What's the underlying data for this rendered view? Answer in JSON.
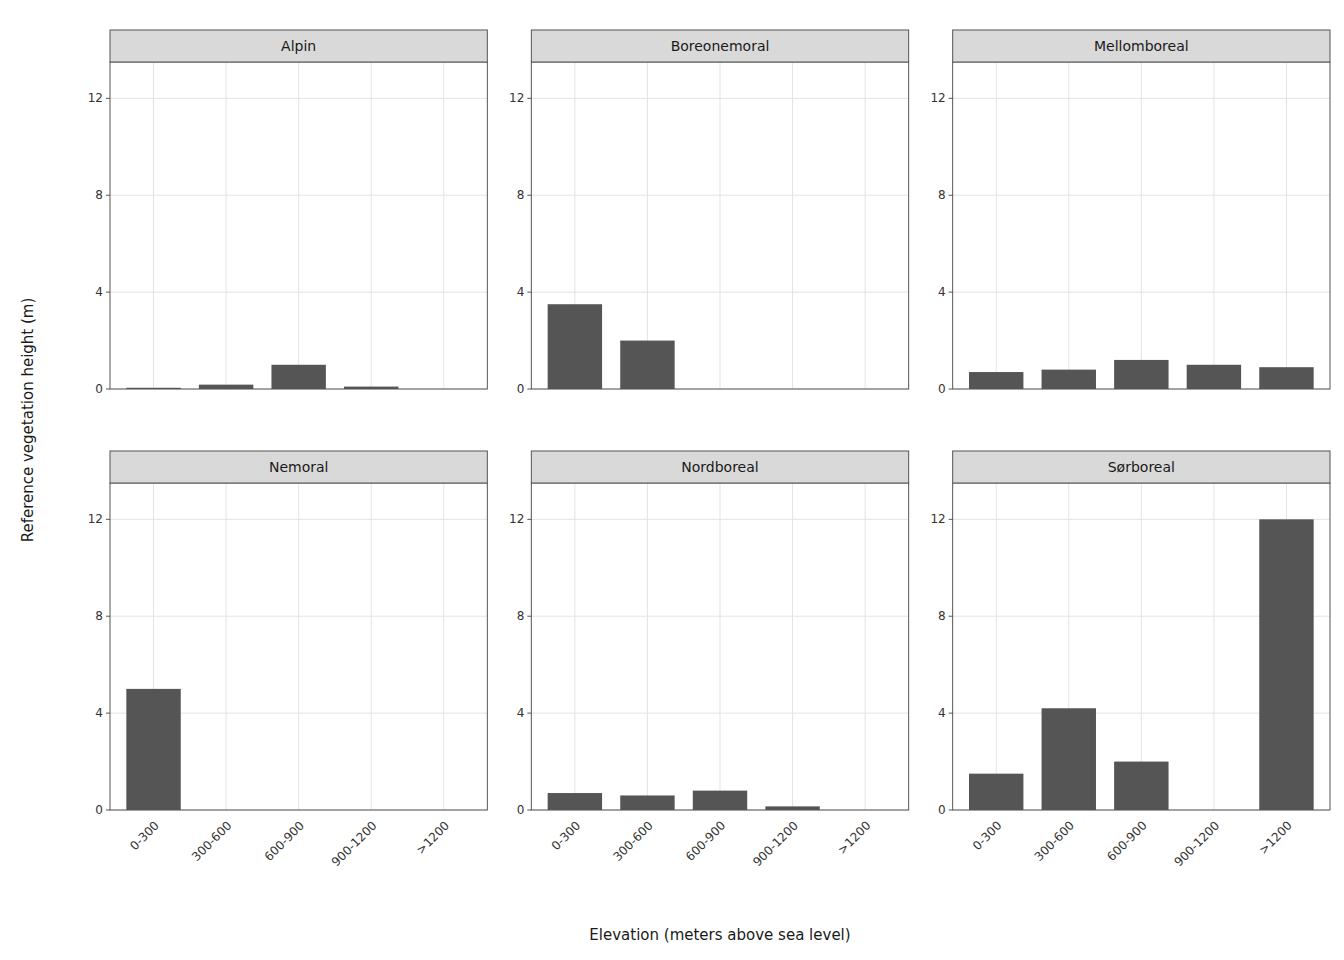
{
  "chart_data": [
    {
      "type": "bar",
      "title": "Alpin",
      "categories": [
        "0-300",
        "300-600",
        "600-900",
        "900-1200",
        ">1200"
      ],
      "values": [
        0.05,
        0.18,
        1.0,
        0.1,
        0.0
      ],
      "color": "#555555",
      "ylim": [
        0,
        13.5
      ],
      "yticks": [
        0,
        4,
        8,
        12
      ],
      "grid": true,
      "tick_labels": "y",
      "xlabel": "Elevation (meters above sea level)",
      "ylabel": "Reference vegetation height (m)"
    },
    {
      "type": "bar",
      "title": "Boreonemoral",
      "categories": [
        "0-300",
        "300-600",
        "600-900",
        "900-1200",
        ">1200"
      ],
      "values": [
        3.5,
        2.0,
        0.0,
        0.0,
        0.0
      ],
      "color": "#555555",
      "ylim": [
        0,
        13.5
      ],
      "yticks": [
        0,
        4,
        8,
        12
      ],
      "grid": true,
      "tick_labels": "y"
    },
    {
      "type": "bar",
      "title": "Mellomboreal",
      "categories": [
        "0-300",
        "300-600",
        "600-900",
        "900-1200",
        ">1200"
      ],
      "values": [
        0.7,
        0.8,
        1.2,
        1.0,
        0.9
      ],
      "color": "#555555",
      "ylim": [
        0,
        13.5
      ],
      "yticks": [
        0,
        4,
        8,
        12
      ],
      "grid": true,
      "tick_labels": "y"
    },
    {
      "type": "bar",
      "title": "Nemoral",
      "categories": [
        "0-300",
        "300-600",
        "600-900",
        "900-1200",
        ">1200"
      ],
      "values": [
        5.0,
        0.0,
        0.0,
        0.0,
        0.0
      ],
      "color": "#555555",
      "ylim": [
        0,
        13.5
      ],
      "yticks": [
        0,
        4,
        8,
        12
      ],
      "grid": true
    },
    {
      "type": "bar",
      "title": "Nordboreal",
      "categories": [
        "0-300",
        "300-600",
        "600-900",
        "900-1200",
        ">1200"
      ],
      "values": [
        0.7,
        0.6,
        0.8,
        0.15,
        0.0
      ],
      "color": "#555555",
      "ylim": [
        0,
        13.5
      ],
      "yticks": [
        0,
        4,
        8,
        12
      ],
      "grid": true
    },
    {
      "type": "bar",
      "title": "Sørboreal",
      "categories": [
        "0-300",
        "300-600",
        "600-900",
        "900-1200",
        ">1200"
      ],
      "values": [
        1.5,
        4.2,
        2.0,
        0.0,
        12.0
      ],
      "color": "#555555",
      "ylim": [
        0,
        13.5
      ],
      "yticks": [
        0,
        4,
        8,
        12
      ],
      "grid": true
    }
  ]
}
